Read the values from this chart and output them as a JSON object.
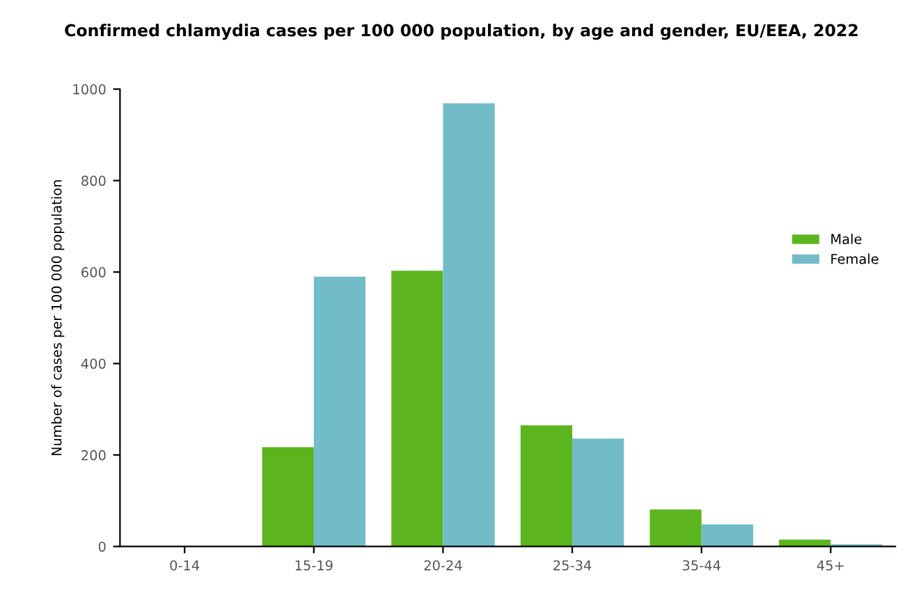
{
  "chart_data": {
    "type": "bar",
    "title": "Confirmed chlamydia cases per 100 000 population, by age and gender, EU/EEA, 2022",
    "ylabel": "Number of cases per 100 000 population",
    "categories": [
      "0-14",
      "15-19",
      "20-24",
      "25-34",
      "35-44",
      "45+"
    ],
    "series": [
      {
        "name": "Male",
        "color": "#5cb51e",
        "values": [
          null,
          217,
          603,
          265,
          81,
          15
        ]
      },
      {
        "name": "Female",
        "color": "#72bcc8",
        "values": [
          null,
          590,
          969,
          236,
          48,
          5
        ]
      }
    ],
    "ylim": [
      0,
      1000
    ],
    "yticks": [
      0,
      200,
      400,
      600,
      800,
      1000
    ],
    "grid": false,
    "legend": "top right"
  }
}
